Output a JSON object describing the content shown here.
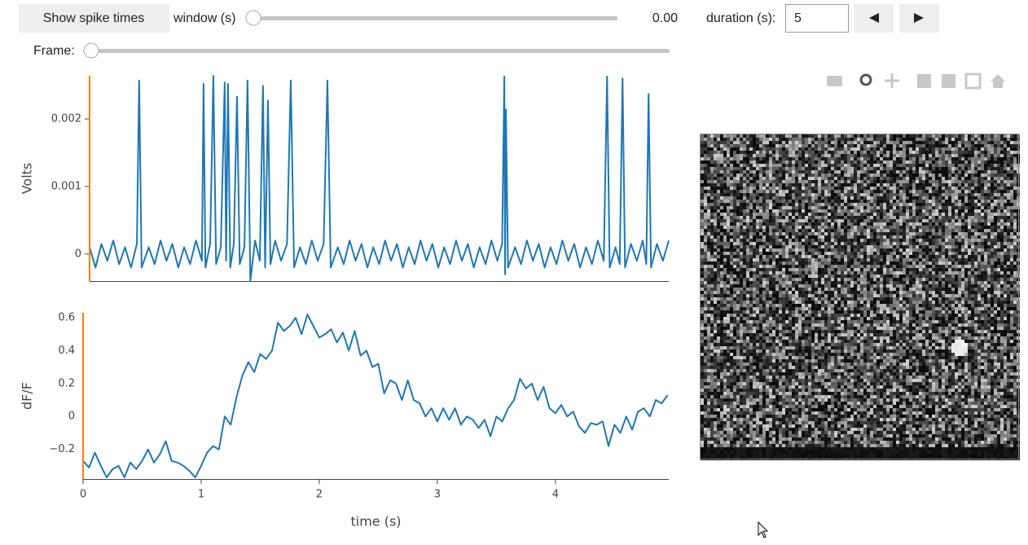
{
  "controls": {
    "button": "Show spike times",
    "window_label": "window (s)",
    "window_value": "0.00",
    "duration_label": "duration (s):",
    "duration_value": "5",
    "frame_label": "Frame:"
  },
  "chart_data": [
    {
      "type": "line",
      "ylabel": "Volts",
      "color": "#1f77b4",
      "xlim": [
        0.05,
        4.95
      ],
      "ylim": [
        -0.0004,
        0.00264
      ],
      "yticks": [
        0,
        0.001,
        0.002
      ],
      "x": [
        0.05,
        0.1,
        0.15,
        0.2,
        0.25,
        0.3,
        0.35,
        0.4,
        0.45,
        0.469,
        0.49,
        0.55,
        0.6,
        0.65,
        0.7,
        0.75,
        0.8,
        0.85,
        0.9,
        0.95,
        1.0,
        1.014,
        1.03,
        1.07,
        1.097,
        1.12,
        1.16,
        1.193,
        1.205,
        1.221,
        1.24,
        1.27,
        1.297,
        1.32,
        1.36,
        1.386,
        1.41,
        1.45,
        1.49,
        1.517,
        1.535,
        1.559,
        1.58,
        1.62,
        1.67,
        1.72,
        1.752,
        1.78,
        1.83,
        1.88,
        1.93,
        1.98,
        2.03,
        2.062,
        2.09,
        2.15,
        2.2,
        2.25,
        2.3,
        2.35,
        2.4,
        2.45,
        2.5,
        2.55,
        2.6,
        2.65,
        2.7,
        2.75,
        2.8,
        2.85,
        2.9,
        2.95,
        3.0,
        3.05,
        3.1,
        3.15,
        3.2,
        3.25,
        3.3,
        3.35,
        3.4,
        3.45,
        3.5,
        3.54,
        3.559,
        3.565,
        3.572,
        3.59,
        3.65,
        3.7,
        3.75,
        3.8,
        3.85,
        3.9,
        3.95,
        4.0,
        4.05,
        4.1,
        4.15,
        4.2,
        4.25,
        4.3,
        4.35,
        4.4,
        4.428,
        4.45,
        4.5,
        4.535,
        4.559,
        4.58,
        4.63,
        4.68,
        4.73,
        4.76,
        4.779,
        4.8,
        4.85,
        4.9,
        4.95
      ],
      "values": [
        0.0001,
        -0.0002,
        0.00015,
        -0.0001,
        0.0002,
        -0.00015,
        0.0001,
        -0.0002,
        0.00015,
        0.00257,
        -0.0002,
        0.0001,
        -0.00015,
        0.0002,
        -0.0001,
        0.00015,
        -0.0002,
        0.0001,
        -0.00015,
        0.0002,
        -0.0001,
        0.00252,
        -0.0002,
        0.00015,
        0.00264,
        -0.00015,
        0.0001,
        0.00254,
        -0.0001,
        0.00252,
        -0.0002,
        0.00015,
        0.00233,
        -0.00015,
        0.0001,
        0.00257,
        -0.0004,
        0.0002,
        -0.0001,
        0.00249,
        -0.0002,
        0.00227,
        -0.00015,
        0.0002,
        -0.0001,
        0.00015,
        0.00257,
        -0.0002,
        0.0001,
        -0.00015,
        0.0002,
        -0.0001,
        0.00015,
        0.00257,
        -0.0002,
        0.0001,
        -0.00015,
        0.0002,
        -0.0001,
        0.00015,
        -0.0002,
        0.0001,
        -0.00015,
        0.0002,
        -0.0001,
        0.00015,
        -0.0002,
        0.0001,
        -0.00015,
        0.0002,
        -0.0001,
        0.00015,
        -0.0002,
        0.0001,
        -0.00015,
        0.0002,
        -0.0001,
        0.00015,
        -0.0002,
        0.0001,
        -0.00015,
        0.0002,
        -0.0001,
        0.00015,
        0.00263,
        -0.0003,
        0.00214,
        -0.0002,
        0.0001,
        -0.00015,
        0.0002,
        -0.0001,
        0.00015,
        -0.0002,
        0.0001,
        -0.00015,
        0.0002,
        -0.0001,
        0.00015,
        -0.0002,
        0.0001,
        -0.00015,
        0.0002,
        -0.0001,
        0.00263,
        -0.0002,
        0.0001,
        -0.00015,
        0.0026,
        -0.0002,
        0.00015,
        -0.0001,
        0.0002,
        -0.00015,
        0.00237,
        -0.0002,
        0.00015,
        -0.0001,
        0.0002
      ]
    },
    {
      "type": "line",
      "ylabel": "dF/F",
      "xlabel": "time (s)",
      "color": "#1f77b4",
      "xlim": [
        0,
        4.96
      ],
      "ylim": [
        -0.38,
        0.63
      ],
      "yticks": [
        {
          "value": -0.2,
          "label": "−0.2"
        },
        0,
        0.2,
        0.4,
        0.6
      ],
      "xticks": [
        0,
        1,
        2,
        3,
        4
      ],
      "x": [
        0,
        0.05,
        0.1,
        0.15,
        0.2,
        0.25,
        0.3,
        0.35,
        0.4,
        0.45,
        0.5,
        0.55,
        0.6,
        0.65,
        0.7,
        0.75,
        0.8,
        0.85,
        0.9,
        0.95,
        1.0,
        1.05,
        1.1,
        1.15,
        1.2,
        1.25,
        1.3,
        1.35,
        1.4,
        1.45,
        1.5,
        1.55,
        1.6,
        1.65,
        1.7,
        1.75,
        1.8,
        1.85,
        1.9,
        1.95,
        2.0,
        2.05,
        2.1,
        2.15,
        2.2,
        2.25,
        2.3,
        2.35,
        2.4,
        2.45,
        2.5,
        2.55,
        2.6,
        2.65,
        2.7,
        2.75,
        2.8,
        2.85,
        2.9,
        2.95,
        3.0,
        3.05,
        3.1,
        3.15,
        3.2,
        3.25,
        3.3,
        3.35,
        3.4,
        3.45,
        3.5,
        3.55,
        3.6,
        3.65,
        3.7,
        3.75,
        3.8,
        3.85,
        3.9,
        3.95,
        4.0,
        4.05,
        4.1,
        4.15,
        4.2,
        4.25,
        4.3,
        4.35,
        4.4,
        4.45,
        4.5,
        4.55,
        4.6,
        4.65,
        4.7,
        4.75,
        4.8,
        4.85,
        4.9,
        4.95
      ],
      "values": [
        -0.27,
        -0.31,
        -0.22,
        -0.3,
        -0.37,
        -0.32,
        -0.3,
        -0.37,
        -0.28,
        -0.32,
        -0.27,
        -0.2,
        -0.28,
        -0.23,
        -0.15,
        -0.27,
        -0.28,
        -0.3,
        -0.33,
        -0.37,
        -0.3,
        -0.22,
        -0.18,
        -0.2,
        0.0,
        -0.05,
        0.12,
        0.25,
        0.33,
        0.27,
        0.38,
        0.35,
        0.4,
        0.57,
        0.52,
        0.55,
        0.6,
        0.5,
        0.62,
        0.55,
        0.48,
        0.5,
        0.53,
        0.45,
        0.51,
        0.4,
        0.52,
        0.37,
        0.4,
        0.3,
        0.32,
        0.14,
        0.22,
        0.2,
        0.1,
        0.22,
        0.1,
        0.08,
        0.0,
        0.05,
        -0.03,
        0.05,
        -0.02,
        0.05,
        -0.05,
        0.0,
        -0.02,
        -0.07,
        -0.02,
        -0.12,
        0.0,
        -0.03,
        0.05,
        0.1,
        0.23,
        0.17,
        0.2,
        0.1,
        0.18,
        0.05,
        0.02,
        0.07,
        0.0,
        0.03,
        -0.06,
        -0.1,
        -0.04,
        -0.05,
        -0.03,
        -0.18,
        -0.05,
        -0.1,
        0.0,
        -0.08,
        0.03,
        0.05,
        0.0,
        0.1,
        0.08,
        0.13
      ]
    }
  ]
}
